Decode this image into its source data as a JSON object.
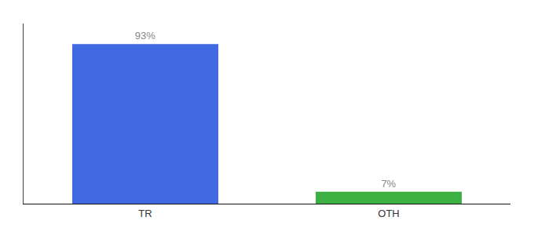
{
  "chart_data": {
    "type": "bar",
    "categories": [
      "TR",
      "OTH"
    ],
    "values": [
      93,
      7
    ],
    "value_labels": [
      "93%",
      "7%"
    ],
    "colors": [
      "#4169e1",
      "#3cb043"
    ],
    "ylim": [
      0,
      105
    ],
    "grid": false,
    "tick_labels": "x"
  }
}
